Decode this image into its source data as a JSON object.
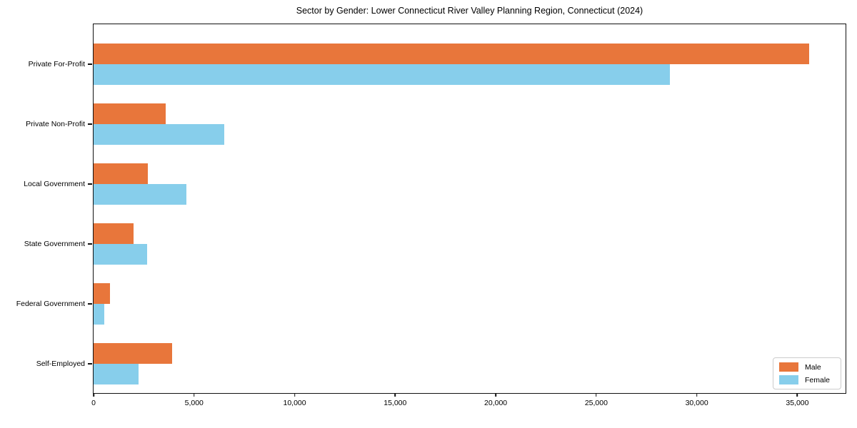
{
  "title": "Sector by Gender: Lower Connecticut River Valley Planning Region, Connecticut (2024)",
  "chart_data": {
    "type": "bar",
    "orientation": "horizontal",
    "title": "Sector by Gender: Lower Connecticut River Valley Planning Region, Connecticut (2024)",
    "xlabel": "",
    "ylabel": "",
    "grid": false,
    "legend_position": "lower right",
    "xlim": [
      0,
      37400
    ],
    "categories": [
      "Private For-Profit",
      "Private Non-Profit",
      "Local Government",
      "State Government",
      "Federal Government",
      "Self-Employed"
    ],
    "series": [
      {
        "name": "Male",
        "color": "#E8763B",
        "values": [
          35600,
          3600,
          2700,
          2000,
          800,
          3900
        ]
      },
      {
        "name": "Female",
        "color": "#87CEEB",
        "values": [
          28650,
          6500,
          4600,
          2650,
          550,
          2250
        ]
      }
    ],
    "x_ticks": [
      {
        "value": 0,
        "label": "0"
      },
      {
        "value": 5000,
        "label": "5,000"
      },
      {
        "value": 10000,
        "label": "10,000"
      },
      {
        "value": 15000,
        "label": "15,000"
      },
      {
        "value": 20000,
        "label": "20,000"
      },
      {
        "value": 25000,
        "label": "25,000"
      },
      {
        "value": 30000,
        "label": "30,000"
      },
      {
        "value": 35000,
        "label": "35,000"
      }
    ]
  }
}
